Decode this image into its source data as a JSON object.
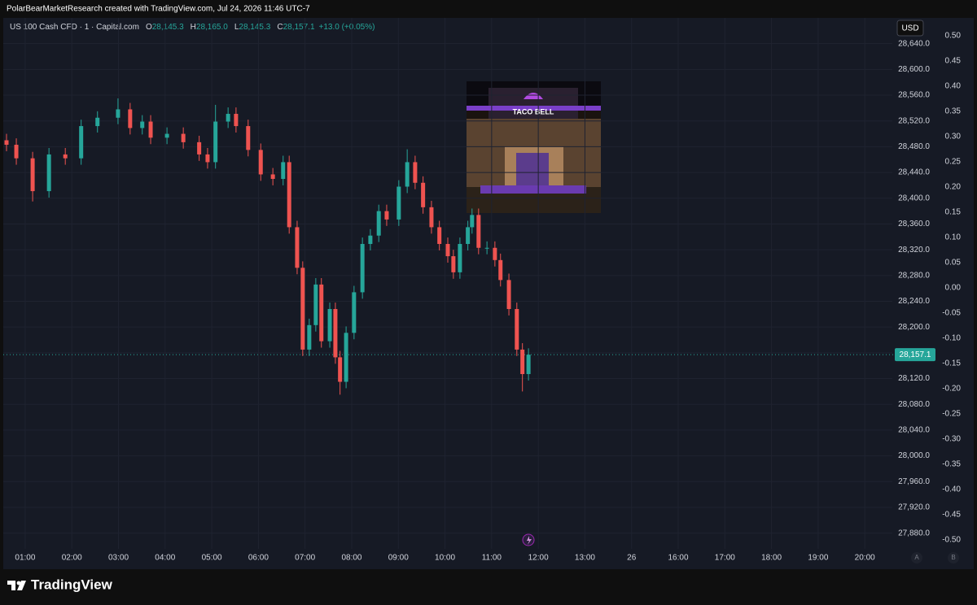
{
  "header": {
    "text": "PolarBearMarketResearch created with TradingView.com, Jul 24, 2026 11:46 UTC-7"
  },
  "legend": {
    "symbol": "US 100 Cash CFD · 1 · Capital.com",
    "fields": [
      {
        "key": "O",
        "value": "28,145.3"
      },
      {
        "key": "H",
        "value": "28,165.0"
      },
      {
        "key": "L",
        "value": "28,145.3"
      },
      {
        "key": "C",
        "value": "28,157.1"
      }
    ],
    "change": "+13.0 (+0.05%)"
  },
  "currency": "USD",
  "image": {
    "text": "TACO BELL"
  },
  "footer": {
    "brand": "TradingView",
    "buttons": [
      "A",
      "B"
    ]
  },
  "chart_data": {
    "type": "candlestick",
    "up_color": "#26a69a",
    "down_color": "#ef5350",
    "grid": true,
    "x": [
      0.6,
      0.81,
      1.16,
      1.51,
      1.86,
      2.2,
      2.55,
      2.99,
      3.25,
      3.51,
      3.69,
      4.04,
      4.39,
      4.73,
      4.91,
      5.08,
      5.35,
      5.52,
      5.78,
      6.05,
      6.31,
      6.53,
      6.66,
      6.83,
      6.95,
      7.09,
      7.23,
      7.35,
      7.53,
      7.65,
      7.75,
      7.88,
      8.05,
      8.23,
      8.4,
      8.58,
      8.75,
      9.01,
      9.19,
      9.36,
      9.53,
      9.71,
      9.88,
      10.06,
      10.18,
      10.32,
      10.49,
      10.58,
      10.72,
      10.9,
      11.07,
      11.19,
      11.37,
      11.54,
      11.66,
      11.79
    ],
    "open": [
      28490,
      28483,
      28462,
      28411,
      28468,
      28462,
      28512,
      28525,
      28538,
      28509,
      28519,
      28494,
      28500,
      28487,
      28468,
      28456,
      28519,
      28531,
      28512,
      28475,
      28437,
      28430,
      28456,
      28355,
      28292,
      28165,
      28203,
      28266,
      28178,
      28228,
      28153,
      28115,
      28191,
      28254,
      28329,
      28342,
      28380,
      28367,
      28418,
      28456,
      28424,
      28386,
      28355,
      28329,
      28310,
      28285,
      28329,
      28355,
      28374,
      28323,
      28323,
      28304,
      28273,
      28228,
      28165,
      28127
    ],
    "high": [
      28500,
      28493,
      28472,
      28478,
      28478,
      28522,
      28535,
      28555,
      28548,
      28529,
      28529,
      28510,
      28510,
      28497,
      28478,
      28545,
      28541,
      28541,
      28522,
      28485,
      28447,
      28466,
      28466,
      28365,
      28302,
      28213,
      28276,
      28276,
      28238,
      28238,
      28163,
      28201,
      28264,
      28339,
      28352,
      28390,
      28390,
      28428,
      28476,
      28466,
      28434,
      28396,
      28365,
      28339,
      28320,
      28339,
      28365,
      28384,
      28384,
      28333,
      28333,
      28314,
      28283,
      28238,
      28175,
      28167
    ],
    "low": [
      28473,
      28452,
      28395,
      28401,
      28452,
      28452,
      28502,
      28515,
      28499,
      28499,
      28484,
      28484,
      28477,
      28458,
      28446,
      28446,
      28509,
      28502,
      28465,
      28427,
      28420,
      28420,
      28345,
      28282,
      28155,
      28155,
      28193,
      28168,
      28168,
      28143,
      28095,
      28105,
      28181,
      28244,
      28319,
      28332,
      28357,
      28357,
      28408,
      28414,
      28376,
      28345,
      28319,
      28300,
      28275,
      28275,
      28319,
      28345,
      28313,
      28313,
      28294,
      28263,
      28218,
      28155,
      28100,
      28117
    ],
    "close": [
      28483,
      28462,
      28411,
      28468,
      28462,
      28512,
      28525,
      28538,
      28509,
      28519,
      28494,
      28500,
      28487,
      28468,
      28456,
      28519,
      28531,
      28512,
      28475,
      28437,
      28430,
      28456,
      28355,
      28292,
      28165,
      28203,
      28266,
      28178,
      28228,
      28153,
      28115,
      28191,
      28254,
      28329,
      28342,
      28380,
      28367,
      28418,
      28456,
      28424,
      28386,
      28355,
      28329,
      28310,
      28285,
      28329,
      28355,
      28374,
      28323,
      28323,
      28304,
      28273,
      28228,
      28165,
      28127,
      28157.1
    ],
    "last_price": {
      "value": 28157.1,
      "label": "28,157.1"
    },
    "xlim": [
      0.53,
      19.59
    ],
    "xticks": [
      {
        "value": 1,
        "label": "01:00"
      },
      {
        "value": 2,
        "label": "02:00"
      },
      {
        "value": 3,
        "label": "03:00"
      },
      {
        "value": 4,
        "label": "04:00"
      },
      {
        "value": 5,
        "label": "05:00"
      },
      {
        "value": 6,
        "label": "06:00"
      },
      {
        "value": 7,
        "label": "07:00"
      },
      {
        "value": 8,
        "label": "08:00"
      },
      {
        "value": 9,
        "label": "09:00"
      },
      {
        "value": 10,
        "label": "10:00"
      },
      {
        "value": 11,
        "label": "11:00"
      },
      {
        "value": 12,
        "label": "12:00"
      },
      {
        "value": 13,
        "label": "13:00"
      },
      {
        "value": 14,
        "label": "26"
      },
      {
        "value": 15,
        "label": "16:00"
      },
      {
        "value": 16,
        "label": "17:00"
      },
      {
        "value": 17,
        "label": "18:00"
      },
      {
        "value": 18,
        "label": "19:00"
      },
      {
        "value": 19,
        "label": "20:00"
      }
    ],
    "ylim": [
      27824,
      28680
    ],
    "yticks": [
      {
        "value": 28640,
        "label": "28,640.0"
      },
      {
        "value": 28600,
        "label": "28,600.0"
      },
      {
        "value": 28560,
        "label": "28,560.0"
      },
      {
        "value": 28520,
        "label": "28,520.0"
      },
      {
        "value": 28480,
        "label": "28,480.0"
      },
      {
        "value": 28440,
        "label": "28,440.0"
      },
      {
        "value": 28400,
        "label": "28,400.0"
      },
      {
        "value": 28360,
        "label": "28,360.0"
      },
      {
        "value": 28320,
        "label": "28,320.0"
      },
      {
        "value": 28280,
        "label": "28,280.0"
      },
      {
        "value": 28240,
        "label": "28,240.0"
      },
      {
        "value": 28200,
        "label": "28,200.0"
      },
      {
        "value": 28160,
        "label": "28,160.0"
      },
      {
        "value": 28120,
        "label": "28,120.0"
      },
      {
        "value": 28080,
        "label": "28,080.0"
      },
      {
        "value": 28040,
        "label": "28,040.0"
      },
      {
        "value": 28000,
        "label": "28,000.0"
      },
      {
        "value": 27960,
        "label": "27,960.0"
      },
      {
        "value": 27920,
        "label": "27,920.0"
      },
      {
        "value": 27880,
        "label": "27,880.0"
      }
    ],
    "y2lim": [
      -0.558,
      0.535
    ],
    "y2ticks": [
      {
        "value": 0.5,
        "label": "0.50"
      },
      {
        "value": 0.45,
        "label": "0.45"
      },
      {
        "value": 0.4,
        "label": "0.40"
      },
      {
        "value": 0.35,
        "label": "0.35"
      },
      {
        "value": 0.3,
        "label": "0.30"
      },
      {
        "value": 0.25,
        "label": "0.25"
      },
      {
        "value": 0.2,
        "label": "0.20"
      },
      {
        "value": 0.15,
        "label": "0.15"
      },
      {
        "value": 0.1,
        "label": "0.10"
      },
      {
        "value": 0.05,
        "label": "0.05"
      },
      {
        "value": 0,
        "label": "0.00"
      },
      {
        "value": -0.05,
        "label": "-0.05"
      },
      {
        "value": -0.1,
        "label": "-0.10"
      },
      {
        "value": -0.15,
        "label": "-0.15"
      },
      {
        "value": -0.2,
        "label": "-0.20"
      },
      {
        "value": -0.25,
        "label": "-0.25"
      },
      {
        "value": -0.3,
        "label": "-0.30"
      },
      {
        "value": -0.35,
        "label": "-0.35"
      },
      {
        "value": -0.4,
        "label": "-0.40"
      },
      {
        "value": -0.45,
        "label": "-0.45"
      },
      {
        "value": -0.5,
        "label": "-0.50"
      }
    ]
  }
}
